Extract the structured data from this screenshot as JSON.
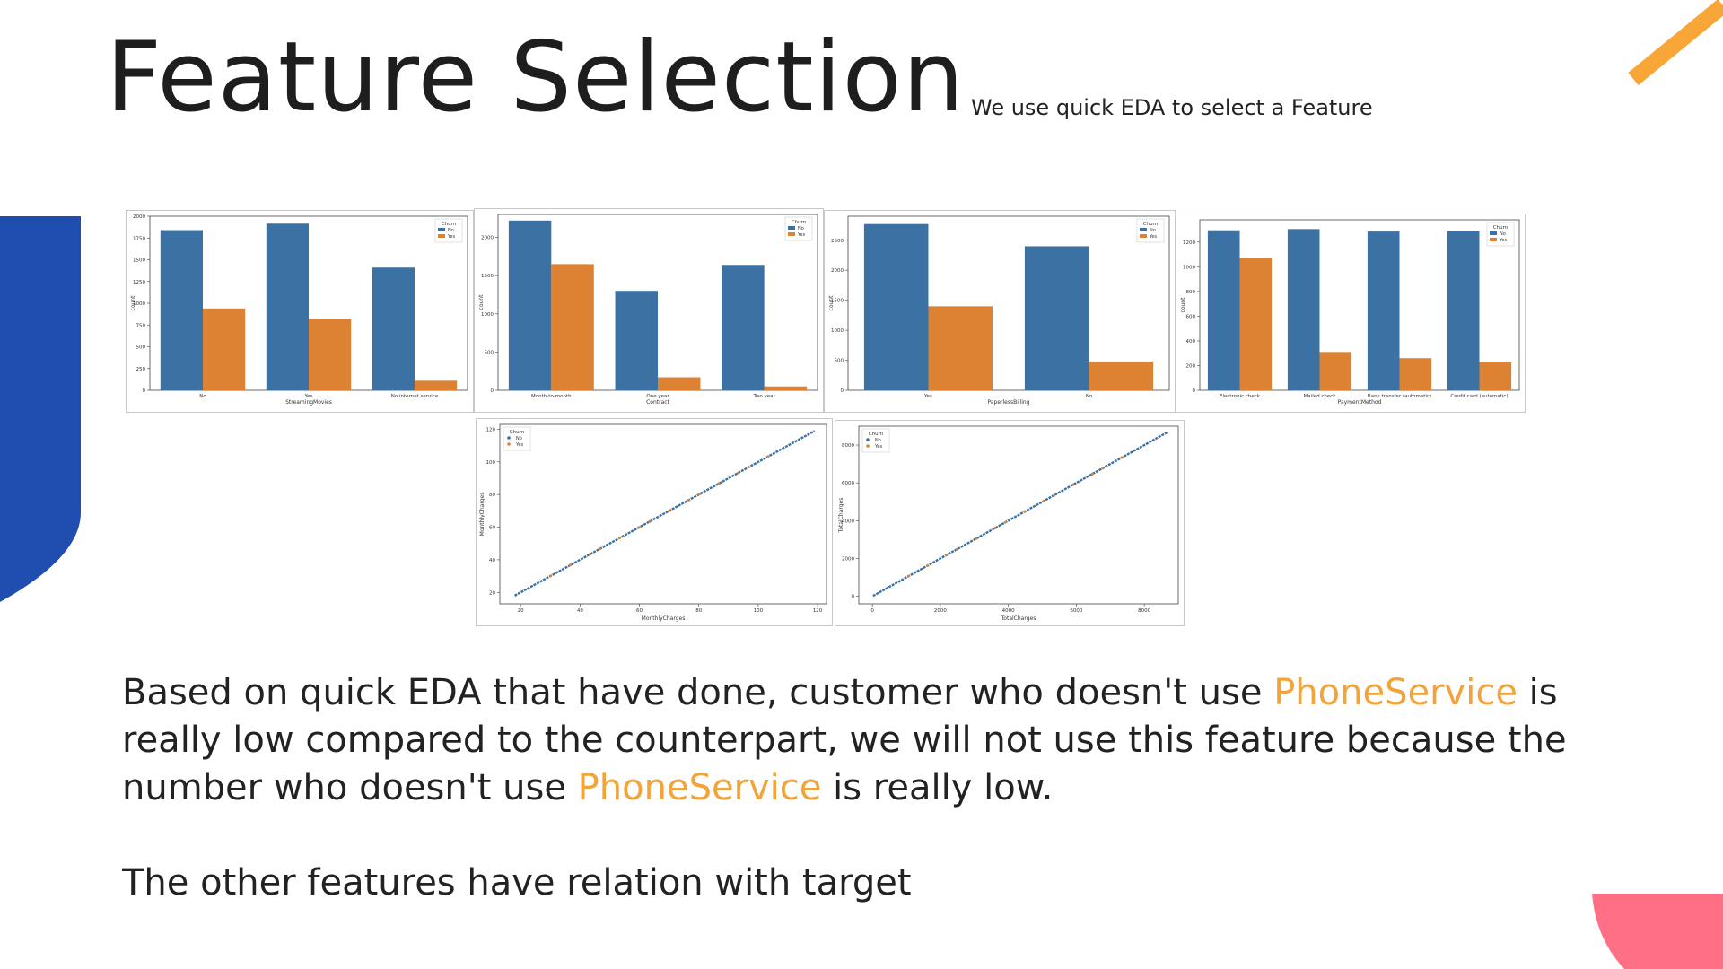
{
  "title": "Feature Selection",
  "subtitle": "We use quick EDA to select a Feature",
  "colors": {
    "blue": "#3c72a3",
    "orange": "#dd8233",
    "deco_blue": "#1f4db0",
    "deco_orange": "#f7a637",
    "deco_pink": "#ff6f86",
    "highlight": "#f2a33a"
  },
  "paragraph1": {
    "part1": "Based on quick EDA that have done, customer who doesn't use ",
    "highlight1": "PhoneService",
    "part2": " is really low compared to the counterpart, we will not use this feature because the number who doesn't use ",
    "highlight2": "PhoneService",
    "part3": " is really low."
  },
  "paragraph2": "The other features have relation with target",
  "chart_data": [
    {
      "type": "bar",
      "xlabel": "StreamingMovies",
      "ylabel": "count",
      "categories": [
        "No",
        "Yes",
        "No internet service"
      ],
      "series": [
        {
          "name": "No",
          "values": [
            1840,
            1915,
            1410
          ]
        },
        {
          "name": "Yes",
          "values": [
            940,
            820,
            110
          ]
        }
      ],
      "ylim": [
        0,
        2000
      ],
      "yticks": [
        0,
        250,
        500,
        750,
        1000,
        1250,
        1500,
        1750,
        2000
      ],
      "legend": {
        "title": "Churn",
        "position": "top-right"
      }
    },
    {
      "type": "bar",
      "xlabel": "Contract",
      "ylabel": "count",
      "categories": [
        "Month-to-month",
        "One year",
        "Two year"
      ],
      "series": [
        {
          "name": "No",
          "values": [
            2220,
            1300,
            1640
          ]
        },
        {
          "name": "Yes",
          "values": [
            1650,
            170,
            50
          ]
        }
      ],
      "ylim": [
        0,
        2300
      ],
      "yticks": [
        0,
        500,
        1000,
        1500,
        2000
      ],
      "legend": {
        "title": "Churn",
        "position": "top-right"
      }
    },
    {
      "type": "bar",
      "xlabel": "PaperlessBilling",
      "ylabel": "count",
      "categories": [
        "Yes",
        "No"
      ],
      "series": [
        {
          "name": "No",
          "values": [
            2770,
            2400
          ]
        },
        {
          "name": "Yes",
          "values": [
            1400,
            480
          ]
        }
      ],
      "ylim": [
        0,
        2900
      ],
      "yticks": [
        0,
        500,
        1000,
        1500,
        2000,
        2500
      ],
      "legend": {
        "title": "Churn",
        "position": "top-right"
      }
    },
    {
      "type": "bar",
      "xlabel": "PaymentMethod",
      "ylabel": "count",
      "categories": [
        "Electronic check",
        "Mailed check",
        "Bank transfer (automatic)",
        "Credit card (automatic)"
      ],
      "series": [
        {
          "name": "No",
          "values": [
            1295,
            1305,
            1285,
            1290
          ]
        },
        {
          "name": "Yes",
          "values": [
            1070,
            310,
            260,
            230
          ]
        }
      ],
      "ylim": [
        0,
        1380
      ],
      "yticks": [
        0,
        200,
        400,
        600,
        800,
        1000,
        1200
      ],
      "legend": {
        "title": "Churn",
        "position": "top-right"
      }
    },
    {
      "type": "scatter",
      "xlabel": "MonthlyCharges",
      "ylabel": "MonthlyCharges",
      "xlim": [
        13,
        123
      ],
      "ylim": [
        13,
        123
      ],
      "xticks": [
        20,
        40,
        60,
        80,
        100,
        120
      ],
      "yticks": [
        20,
        40,
        60,
        80,
        100,
        120
      ],
      "series": [
        {
          "name": "No"
        },
        {
          "name": "Yes"
        }
      ],
      "line_from": [
        18,
        18
      ],
      "line_to": [
        119,
        119
      ],
      "legend": {
        "title": "Churn",
        "position": "top-left"
      }
    },
    {
      "type": "scatter",
      "xlabel": "TotalCharges",
      "ylabel": "TotalCharges",
      "xlim": [
        -400,
        9000
      ],
      "ylim": [
        -400,
        9000
      ],
      "xticks": [
        0,
        2000,
        4000,
        6000,
        8000
      ],
      "yticks": [
        0,
        2000,
        4000,
        6000,
        8000
      ],
      "series": [
        {
          "name": "No"
        },
        {
          "name": "Yes"
        }
      ],
      "line_from": [
        18,
        18
      ],
      "line_to": [
        8680,
        8680
      ],
      "legend": {
        "title": "Churn",
        "position": "top-left"
      }
    }
  ]
}
